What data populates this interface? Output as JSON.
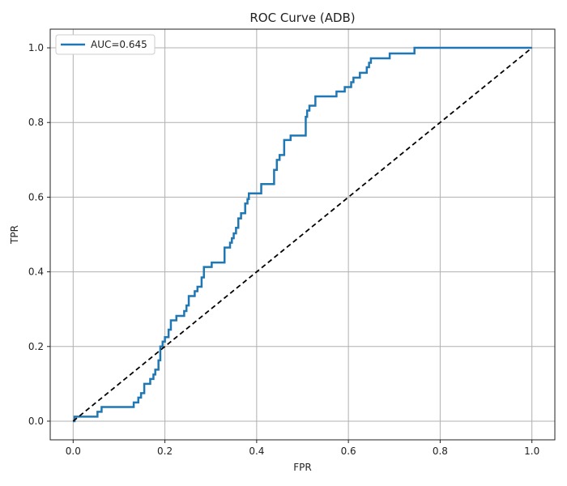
{
  "chart_data": {
    "type": "line",
    "title": "ROC Curve (ADB)",
    "xlabel": "FPR",
    "ylabel": "TPR",
    "xlim": [
      -0.05,
      1.05
    ],
    "ylim": [
      -0.05,
      1.05
    ],
    "xticks": [
      0.0,
      0.2,
      0.4,
      0.6,
      0.8,
      1.0
    ],
    "xtick_labels": [
      "0.0",
      "0.2",
      "0.4",
      "0.6",
      "0.8",
      "1.0"
    ],
    "yticks": [
      0.0,
      0.2,
      0.4,
      0.6,
      0.8,
      1.0
    ],
    "ytick_labels": [
      "0.0",
      "0.2",
      "0.4",
      "0.6",
      "0.8",
      "1.0"
    ],
    "grid": true,
    "legend_placement": "top-left",
    "series": [
      {
        "name": "AUC=0.645",
        "color": "#1f77b4",
        "style": "solid",
        "step": true,
        "points": [
          [
            0.0,
            0.0
          ],
          [
            0.003,
            0.0
          ],
          [
            0.003,
            0.012
          ],
          [
            0.053,
            0.012
          ],
          [
            0.053,
            0.025
          ],
          [
            0.062,
            0.025
          ],
          [
            0.062,
            0.038
          ],
          [
            0.132,
            0.038
          ],
          [
            0.132,
            0.05
          ],
          [
            0.142,
            0.05
          ],
          [
            0.142,
            0.063
          ],
          [
            0.148,
            0.063
          ],
          [
            0.148,
            0.075
          ],
          [
            0.155,
            0.075
          ],
          [
            0.155,
            0.1
          ],
          [
            0.168,
            0.1
          ],
          [
            0.168,
            0.113
          ],
          [
            0.175,
            0.113
          ],
          [
            0.175,
            0.125
          ],
          [
            0.179,
            0.125
          ],
          [
            0.179,
            0.138
          ],
          [
            0.186,
            0.138
          ],
          [
            0.186,
            0.163
          ],
          [
            0.19,
            0.163
          ],
          [
            0.19,
            0.2
          ],
          [
            0.195,
            0.2
          ],
          [
            0.195,
            0.213
          ],
          [
            0.2,
            0.213
          ],
          [
            0.2,
            0.225
          ],
          [
            0.208,
            0.225
          ],
          [
            0.208,
            0.245
          ],
          [
            0.213,
            0.245
          ],
          [
            0.213,
            0.27
          ],
          [
            0.225,
            0.27
          ],
          [
            0.225,
            0.282
          ],
          [
            0.242,
            0.282
          ],
          [
            0.242,
            0.295
          ],
          [
            0.247,
            0.295
          ],
          [
            0.247,
            0.31
          ],
          [
            0.252,
            0.31
          ],
          [
            0.252,
            0.335
          ],
          [
            0.265,
            0.335
          ],
          [
            0.265,
            0.348
          ],
          [
            0.271,
            0.348
          ],
          [
            0.271,
            0.36
          ],
          [
            0.28,
            0.36
          ],
          [
            0.28,
            0.385
          ],
          [
            0.285,
            0.385
          ],
          [
            0.285,
            0.413
          ],
          [
            0.302,
            0.413
          ],
          [
            0.302,
            0.425
          ],
          [
            0.33,
            0.425
          ],
          [
            0.33,
            0.465
          ],
          [
            0.342,
            0.465
          ],
          [
            0.342,
            0.478
          ],
          [
            0.346,
            0.478
          ],
          [
            0.346,
            0.49
          ],
          [
            0.35,
            0.49
          ],
          [
            0.35,
            0.503
          ],
          [
            0.355,
            0.503
          ],
          [
            0.355,
            0.518
          ],
          [
            0.36,
            0.518
          ],
          [
            0.36,
            0.543
          ],
          [
            0.366,
            0.543
          ],
          [
            0.366,
            0.557
          ],
          [
            0.375,
            0.557
          ],
          [
            0.375,
            0.583
          ],
          [
            0.38,
            0.583
          ],
          [
            0.38,
            0.595
          ],
          [
            0.383,
            0.595
          ],
          [
            0.383,
            0.61
          ],
          [
            0.41,
            0.61
          ],
          [
            0.41,
            0.635
          ],
          [
            0.438,
            0.635
          ],
          [
            0.438,
            0.673
          ],
          [
            0.444,
            0.673
          ],
          [
            0.444,
            0.7
          ],
          [
            0.45,
            0.7
          ],
          [
            0.45,
            0.713
          ],
          [
            0.46,
            0.713
          ],
          [
            0.46,
            0.753
          ],
          [
            0.474,
            0.753
          ],
          [
            0.474,
            0.765
          ],
          [
            0.507,
            0.765
          ],
          [
            0.507,
            0.815
          ],
          [
            0.51,
            0.815
          ],
          [
            0.51,
            0.832
          ],
          [
            0.515,
            0.832
          ],
          [
            0.515,
            0.845
          ],
          [
            0.528,
            0.845
          ],
          [
            0.528,
            0.87
          ],
          [
            0.574,
            0.87
          ],
          [
            0.574,
            0.883
          ],
          [
            0.592,
            0.883
          ],
          [
            0.592,
            0.895
          ],
          [
            0.606,
            0.895
          ],
          [
            0.606,
            0.908
          ],
          [
            0.611,
            0.908
          ],
          [
            0.611,
            0.92
          ],
          [
            0.625,
            0.92
          ],
          [
            0.625,
            0.933
          ],
          [
            0.64,
            0.933
          ],
          [
            0.64,
            0.948
          ],
          [
            0.645,
            0.948
          ],
          [
            0.645,
            0.96
          ],
          [
            0.649,
            0.96
          ],
          [
            0.649,
            0.972
          ],
          [
            0.69,
            0.972
          ],
          [
            0.69,
            0.985
          ],
          [
            0.744,
            0.985
          ],
          [
            0.744,
            1.0
          ],
          [
            1.0,
            1.0
          ]
        ]
      },
      {
        "name": "",
        "color": "#000000",
        "style": "dashed",
        "points": [
          [
            0.0,
            0.0
          ],
          [
            1.0,
            1.0
          ]
        ]
      }
    ]
  }
}
